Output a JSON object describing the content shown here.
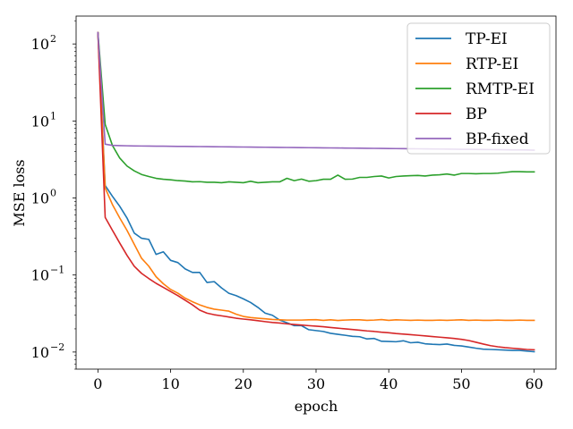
{
  "chart_data": {
    "type": "line",
    "title": "",
    "xlabel": "epoch",
    "ylabel": "MSE loss",
    "yscale": "log",
    "xlim": [
      -3,
      63
    ],
    "ylim": [
      0.006,
      230
    ],
    "xticks": [
      0,
      10,
      20,
      30,
      40,
      50,
      60
    ],
    "xtick_labels": [
      "0",
      "10",
      "20",
      "30",
      "40",
      "50",
      "60"
    ],
    "yticks": [
      0.01,
      0.1,
      1,
      10,
      100
    ],
    "ytick_labels": [
      {
        "base": "10",
        "exp": "−2"
      },
      {
        "base": "10",
        "exp": "−1"
      },
      {
        "base": "10",
        "exp": "0"
      },
      {
        "base": "10",
        "exp": "1"
      },
      {
        "base": "10",
        "exp": "2"
      }
    ],
    "grid": false,
    "legend_position": "top-right",
    "x": [
      0,
      1,
      2,
      3,
      4,
      5,
      6,
      7,
      8,
      9,
      10,
      11,
      12,
      13,
      14,
      15,
      16,
      17,
      18,
      19,
      20,
      21,
      22,
      23,
      24,
      25,
      26,
      27,
      28,
      29,
      30,
      31,
      32,
      33,
      34,
      35,
      36,
      37,
      38,
      39,
      40,
      41,
      42,
      43,
      44,
      45,
      46,
      47,
      48,
      49,
      50,
      51,
      52,
      53,
      54,
      55,
      56,
      57,
      58,
      59,
      60
    ],
    "series": [
      {
        "name": "TP-EI",
        "color": "#1f77b4",
        "values": [
          140,
          1.45,
          1.05,
          0.78,
          0.55,
          0.35,
          0.3,
          0.29,
          0.185,
          0.2,
          0.155,
          0.145,
          0.12,
          0.108,
          0.108,
          0.08,
          0.082,
          0.068,
          0.058,
          0.054,
          0.049,
          0.044,
          0.038,
          0.032,
          0.03,
          0.026,
          0.024,
          0.022,
          0.022,
          0.0195,
          0.019,
          0.0185,
          0.0175,
          0.017,
          0.0165,
          0.016,
          0.0158,
          0.0148,
          0.015,
          0.0138,
          0.0137,
          0.0136,
          0.014,
          0.0132,
          0.0134,
          0.0128,
          0.0126,
          0.0125,
          0.0127,
          0.0122,
          0.012,
          0.0116,
          0.0112,
          0.0109,
          0.0108,
          0.0107,
          0.0106,
          0.0105,
          0.0105,
          0.0103,
          0.0101
        ]
      },
      {
        "name": "RTP-EI",
        "color": "#ff7f0e",
        "values": [
          140,
          1.35,
          0.82,
          0.55,
          0.38,
          0.25,
          0.165,
          0.13,
          0.095,
          0.077,
          0.065,
          0.058,
          0.05,
          0.045,
          0.041,
          0.038,
          0.036,
          0.035,
          0.034,
          0.031,
          0.029,
          0.028,
          0.0275,
          0.027,
          0.0265,
          0.0262,
          0.026,
          0.026,
          0.026,
          0.0262,
          0.0263,
          0.0258,
          0.0262,
          0.0257,
          0.026,
          0.0262,
          0.0262,
          0.0258,
          0.026,
          0.0264,
          0.0258,
          0.0262,
          0.026,
          0.0258,
          0.026,
          0.0258,
          0.0258,
          0.026,
          0.0258,
          0.026,
          0.0262,
          0.0258,
          0.026,
          0.0258,
          0.0258,
          0.026,
          0.0258,
          0.0258,
          0.026,
          0.0258,
          0.0258
        ]
      },
      {
        "name": "RMTP-EI",
        "color": "#2ca02c",
        "values": [
          140,
          9.0,
          4.8,
          3.3,
          2.6,
          2.25,
          2.02,
          1.9,
          1.8,
          1.75,
          1.72,
          1.68,
          1.66,
          1.62,
          1.63,
          1.6,
          1.6,
          1.58,
          1.62,
          1.6,
          1.58,
          1.65,
          1.58,
          1.6,
          1.62,
          1.62,
          1.8,
          1.68,
          1.76,
          1.65,
          1.68,
          1.75,
          1.75,
          1.98,
          1.75,
          1.76,
          1.85,
          1.85,
          1.9,
          1.93,
          1.82,
          1.9,
          1.93,
          1.95,
          1.96,
          1.93,
          1.98,
          2.0,
          2.05,
          1.98,
          2.08,
          2.08,
          2.06,
          2.08,
          2.08,
          2.1,
          2.15,
          2.2,
          2.2,
          2.18,
          2.18
        ]
      },
      {
        "name": "BP",
        "color": "#d62728",
        "values": [
          140,
          0.56,
          0.38,
          0.26,
          0.18,
          0.13,
          0.105,
          0.09,
          0.078,
          0.069,
          0.061,
          0.054,
          0.047,
          0.041,
          0.035,
          0.032,
          0.0305,
          0.0295,
          0.0285,
          0.0275,
          0.0268,
          0.0262,
          0.0255,
          0.0248,
          0.0242,
          0.0238,
          0.0232,
          0.0228,
          0.0224,
          0.022,
          0.0217,
          0.0213,
          0.0208,
          0.0204,
          0.02,
          0.0196,
          0.0192,
          0.0188,
          0.0185,
          0.0181,
          0.0178,
          0.0174,
          0.0171,
          0.0168,
          0.0165,
          0.0162,
          0.0159,
          0.0156,
          0.0153,
          0.015,
          0.0146,
          0.0141,
          0.0134,
          0.0127,
          0.0121,
          0.0117,
          0.0114,
          0.0112,
          0.011,
          0.0108,
          0.0107
        ]
      },
      {
        "name": "BP-fixed",
        "color": "#9467bd",
        "values": [
          140,
          5.0,
          4.82,
          4.78,
          4.76,
          4.74,
          4.73,
          4.72,
          4.71,
          4.7,
          4.69,
          4.68,
          4.67,
          4.66,
          4.65,
          4.64,
          4.63,
          4.62,
          4.61,
          4.6,
          4.59,
          4.58,
          4.57,
          4.56,
          4.55,
          4.54,
          4.53,
          4.52,
          4.51,
          4.5,
          4.49,
          4.48,
          4.47,
          4.46,
          4.45,
          4.44,
          4.43,
          4.42,
          4.41,
          4.4,
          4.39,
          4.38,
          4.37,
          4.36,
          4.35,
          4.34,
          4.33,
          4.32,
          4.31,
          4.3,
          4.29,
          4.28,
          4.27,
          4.26,
          4.25,
          4.24,
          4.23,
          4.22,
          4.21,
          4.2,
          4.18
        ]
      }
    ]
  }
}
